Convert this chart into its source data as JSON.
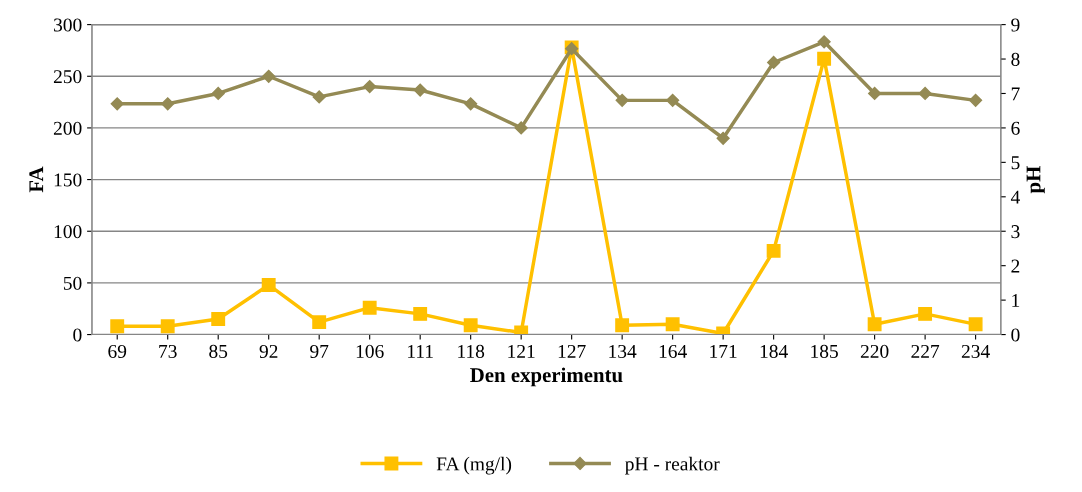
{
  "chart_data": {
    "type": "line",
    "xlabel": "Den experimentu",
    "ylabel": "FA",
    "y2label": "pH",
    "categories": [
      "69",
      "73",
      "85",
      "92",
      "97",
      "106",
      "111",
      "118",
      "121",
      "127",
      "134",
      "164",
      "171",
      "184",
      "185",
      "220",
      "227",
      "234"
    ],
    "series": [
      {
        "name": "FA (mg/l)",
        "color": "#ffc000",
        "marker": "square",
        "values": [
          8,
          8,
          15,
          48,
          12,
          26,
          20,
          9,
          2,
          278,
          9,
          10,
          1,
          81,
          267,
          10,
          20,
          10
        ]
      },
      {
        "name": "pH - reaktor",
        "color": "#948a54",
        "marker": "diamond",
        "axis": "y2",
        "values": [
          6.7,
          6.7,
          7.0,
          7.5,
          6.9,
          7.2,
          7.1,
          6.7,
          6.0,
          8.3,
          6.8,
          6.8,
          5.7,
          7.9,
          8.5,
          7.0,
          7.0,
          6.8
        ]
      }
    ],
    "ylim": [
      0,
      300
    ],
    "yticks": [
      0,
      50,
      100,
      150,
      200,
      250,
      300
    ],
    "y2lim": [
      0,
      9
    ],
    "y2ticks": [
      0,
      1,
      2,
      3,
      4,
      5,
      6,
      7,
      8,
      9
    ],
    "grid": "y",
    "legend": "bottom",
    "line_style": "solid"
  }
}
